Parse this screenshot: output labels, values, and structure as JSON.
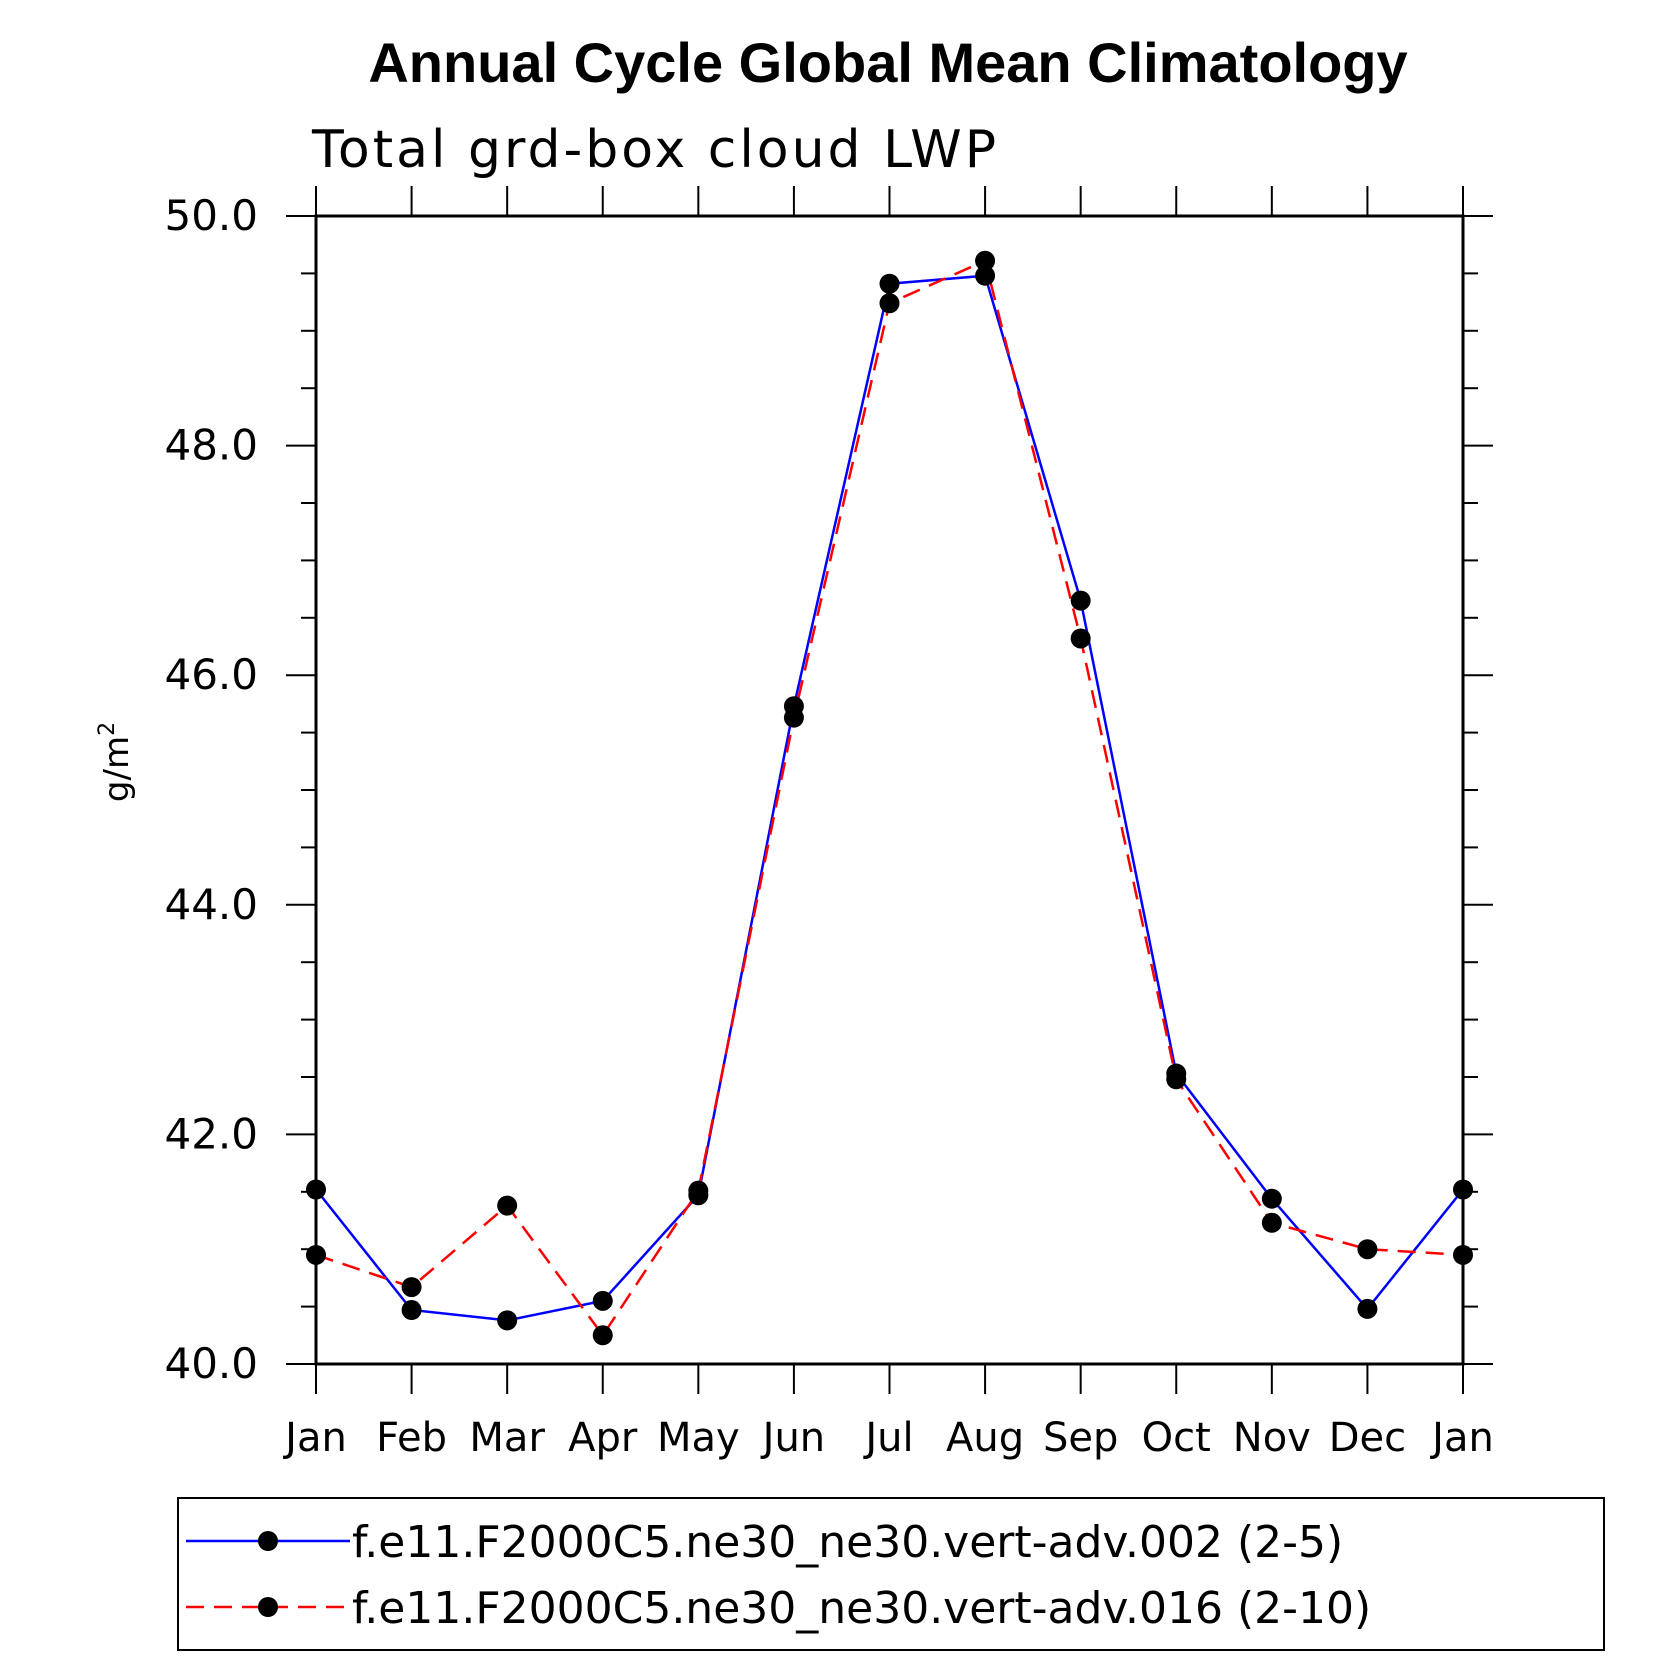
{
  "chart_data": {
    "type": "line",
    "title": "Annual Cycle Global Mean Climatology",
    "subtitle": "Total grd-box cloud LWP",
    "ylabel": "g/m",
    "ylabel_sup": "2",
    "xlabel": "",
    "categories": [
      "Jan",
      "Feb",
      "Mar",
      "Apr",
      "May",
      "Jun",
      "Jul",
      "Aug",
      "Sep",
      "Oct",
      "Nov",
      "Dec",
      "Jan"
    ],
    "ylim": [
      40.0,
      50.0
    ],
    "yticks": [
      "40.0",
      "42.0",
      "44.0",
      "46.0",
      "48.0",
      "50.0"
    ],
    "grid": false,
    "legend_position": "bottom",
    "series": [
      {
        "name": "f.e11.F2000C5.ne30_ne30.vert-adv.002 (2-5)",
        "color": "#0000ff",
        "line_style": "solid",
        "marker": "filled-circle",
        "values": [
          41.52,
          40.47,
          40.38,
          40.55,
          41.47,
          45.73,
          49.41,
          49.48,
          46.65,
          42.53,
          41.44,
          40.48,
          41.52
        ]
      },
      {
        "name": "f.e11.F2000C5.ne30_ne30.vert-adv.016 (2-10)",
        "color": "#ff0000",
        "line_style": "dashed",
        "marker": "filled-circle",
        "values": [
          40.95,
          40.67,
          41.38,
          40.25,
          41.51,
          45.63,
          49.24,
          49.61,
          46.32,
          42.48,
          41.23,
          41.0,
          40.95
        ]
      }
    ]
  }
}
